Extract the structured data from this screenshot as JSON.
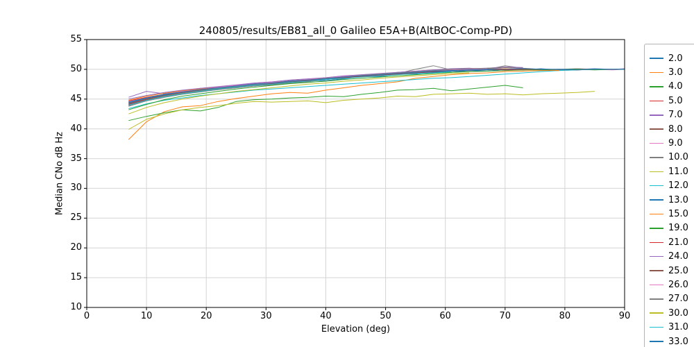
{
  "figure": {
    "background": "#ffffff",
    "grid_color": "#d4d4d4",
    "frame_color": "#000000"
  },
  "chart_data": {
    "type": "line",
    "title": "240805/results/EB81_all_0 Galileo E5A+B(AltBOC-Comp-PD)",
    "xlabel": "Elevation (deg)",
    "ylabel": "Median CNo dB Hz",
    "xlim": [
      0,
      90
    ],
    "ylim": [
      10,
      55
    ],
    "x_ticks": [
      0,
      10,
      20,
      30,
      40,
      50,
      60,
      70,
      80,
      90
    ],
    "y_ticks": [
      10,
      15,
      20,
      25,
      30,
      35,
      40,
      45,
      50,
      55
    ],
    "grid": true,
    "legend_position": "upper-right-outside",
    "x": [
      7,
      10,
      13,
      16,
      19,
      22,
      25,
      28,
      31,
      34,
      37,
      40,
      43,
      46,
      49,
      52,
      55,
      58,
      61,
      64,
      67,
      70,
      73,
      76,
      79,
      82,
      85,
      88,
      90
    ],
    "series": [
      {
        "name": "2.0",
        "color": "#1f77b4",
        "y": [
          44.2,
          45.0,
          45.6,
          46.1,
          46.3,
          46.8,
          47.0,
          47.2,
          47.6,
          47.7,
          48.1,
          48.1,
          48.4,
          48.8,
          48.8,
          49.2,
          49.2,
          49.6,
          49.5,
          49.8,
          49.7,
          50.0,
          49.9,
          50.1,
          49.9,
          50.0,
          50.1,
          50.0,
          50.0
        ]
      },
      {
        "name": "3.0",
        "color": "#ff7f0e",
        "y": [
          38.2,
          41.2,
          42.9,
          43.7,
          43.9,
          44.6,
          45.1,
          45.5,
          45.9,
          46.1,
          46.0,
          46.5,
          46.9,
          47.3,
          47.6,
          47.9,
          48.5,
          48.8,
          49.1,
          49.3,
          49.4,
          49.6,
          49.7,
          49.8,
          49.8,
          49.9,
          50.0,
          50.0,
          50.0
        ]
      },
      {
        "name": "4.0",
        "color": "#2ca02c",
        "y": [
          41.4,
          42.1,
          42.7,
          43.2,
          43.0,
          43.6,
          44.6,
          44.9,
          45.0,
          45.2,
          45.3,
          45.5,
          45.4,
          45.8,
          46.1,
          46.5,
          46.6,
          46.8,
          46.4,
          46.7,
          47.0,
          47.3,
          46.9
        ]
      },
      {
        "name": "5.0",
        "color": "#d62728",
        "y": [
          44.7,
          45.3,
          45.8,
          46.3,
          46.6,
          46.9,
          47.2,
          47.5,
          47.7,
          48.0,
          48.2,
          48.4,
          48.7,
          48.9,
          49.1,
          49.4,
          49.6,
          49.8,
          50.0,
          49.9,
          50.1,
          50.0,
          50.0,
          49.9,
          50.0,
          49.9,
          50.0,
          50.0,
          50.0
        ]
      },
      {
        "name": "7.0",
        "color": "#9467bd",
        "y": [
          45.3,
          46.3,
          45.9,
          46.4,
          46.8,
          47.0,
          47.3,
          47.6,
          47.8,
          48.1,
          48.3,
          48.5,
          48.8,
          49.0,
          49.2,
          49.5,
          49.7,
          49.9,
          50.1,
          50.2,
          50.0,
          50.3,
          50.1,
          50.0,
          50.0,
          50.1,
          50.0,
          50.0,
          50.1
        ]
      },
      {
        "name": "8.0",
        "color": "#8c564b",
        "y": [
          44.0,
          44.9,
          45.4,
          45.9,
          46.3,
          46.6,
          46.9,
          47.2,
          47.5,
          47.8,
          48.0,
          48.3,
          48.5,
          48.8,
          49.0,
          49.2,
          49.4,
          49.6,
          49.7,
          49.8,
          49.9,
          50.0,
          50.0,
          49.9,
          49.9,
          50.0,
          50.0,
          50.0
        ]
      },
      {
        "name": "9.0",
        "color": "#e377c2",
        "y": [
          44.5,
          45.2,
          45.7,
          46.2,
          46.5,
          46.8,
          47.1,
          47.3,
          47.6,
          47.9,
          48.1,
          48.3,
          48.6,
          48.8,
          49.0,
          49.2,
          49.5,
          49.7,
          49.8,
          49.9,
          50.0,
          50.1,
          50.0,
          50.0,
          49.9,
          50.0,
          50.0,
          49.9,
          50.0
        ]
      },
      {
        "name": "10.0",
        "color": "#7f7f7f",
        "y": [
          43.8,
          44.7,
          45.3,
          45.8,
          46.2,
          46.6,
          46.9,
          47.2,
          47.4,
          47.7,
          47.9,
          48.3,
          48.6,
          48.8,
          49.0,
          49.3,
          50.0,
          50.6,
          49.9,
          50.1,
          50.0,
          50.6,
          50.2,
          50.0,
          49.9,
          50.1,
          50.0,
          50.0,
          50.0
        ]
      },
      {
        "name": "11.0",
        "color": "#bcbd22",
        "y": [
          39.9,
          41.6,
          42.5,
          43.2,
          43.6,
          43.9,
          44.3,
          44.6,
          44.5,
          44.6,
          44.7,
          44.4,
          44.8,
          45.0,
          45.2,
          45.5,
          45.4,
          45.8,
          45.9,
          46.0,
          45.8,
          45.9,
          45.7,
          45.9,
          46.0,
          46.1,
          46.3
        ]
      },
      {
        "name": "12.0",
        "color": "#17becf",
        "y": [
          43.4,
          44.2,
          44.8,
          45.2,
          45.6,
          45.9,
          46.2,
          46.5,
          46.7,
          46.9,
          47.1,
          47.3,
          47.5,
          47.7,
          47.9,
          48.1,
          48.3,
          48.5,
          48.6,
          48.8,
          49.0,
          49.2,
          49.4,
          49.6,
          49.8,
          49.9,
          50.0,
          50.0,
          50.0
        ]
      },
      {
        "name": "13.0",
        "color": "#1f77b4",
        "y": [
          44.4,
          45.1,
          45.7,
          46.1,
          46.5,
          46.8,
          47.1,
          47.4,
          47.6,
          47.9,
          48.1,
          48.3,
          48.6,
          48.8,
          49.0,
          49.2,
          49.4,
          49.5,
          49.7,
          49.8,
          49.9,
          50.0,
          49.9,
          50.0,
          50.0,
          50.0
        ]
      },
      {
        "name": "15.0",
        "color": "#ff7f0e",
        "y": [
          44.8,
          45.5,
          46.0,
          46.4,
          46.7,
          47.0,
          47.2,
          47.5,
          47.8,
          48.0,
          48.3,
          48.5,
          48.7,
          48.9,
          49.1,
          49.3,
          49.5,
          49.7,
          49.8,
          49.9,
          50.0,
          50.1,
          50.0,
          49.9,
          49.8
        ]
      },
      {
        "name": "19.0",
        "color": "#2ca02c",
        "y": [
          43.2,
          44.1,
          44.9,
          45.5,
          45.9,
          46.3,
          46.7,
          47.0,
          47.3,
          47.6,
          47.8,
          48.0,
          48.3,
          48.5,
          48.7,
          48.9,
          49.1,
          49.3,
          49.5,
          49.6,
          49.7,
          49.8,
          49.9,
          49.9,
          50.0,
          50.0,
          49.9,
          50.0,
          50.0
        ]
      },
      {
        "name": "21.0",
        "color": "#d62728",
        "y": [
          44.1,
          44.9,
          45.5,
          46.0,
          46.4,
          46.7,
          47.0,
          47.3,
          47.6,
          47.8,
          48.1,
          48.3,
          48.6,
          48.8,
          49.0,
          49.2,
          49.4,
          49.6,
          49.8,
          49.9,
          50.0,
          49.9,
          50.0,
          50.0
        ]
      },
      {
        "name": "24.0",
        "color": "#9467bd",
        "y": [
          45.0,
          45.6,
          46.1,
          46.5,
          46.8,
          47.1,
          47.4,
          47.7,
          47.9,
          48.2,
          48.4,
          48.6,
          48.9,
          49.1,
          49.3,
          49.5,
          49.7,
          49.9,
          50.0,
          50.1,
          50.2,
          50.4,
          50.3
        ]
      },
      {
        "name": "25.0",
        "color": "#8c564b",
        "y": [
          44.3,
          45.0,
          45.6,
          46.1,
          46.5,
          46.8,
          47.1,
          47.4,
          47.7,
          47.9,
          48.2,
          48.4,
          48.7,
          48.9,
          49.1,
          49.3,
          49.5,
          49.7,
          49.8,
          49.9,
          50.0,
          50.0
        ]
      },
      {
        "name": "26.0",
        "color": "#e377c2",
        "y": [
          44.6,
          45.2,
          45.8,
          46.3,
          46.6,
          47.0,
          47.3,
          47.5,
          47.8,
          48.0,
          48.3,
          48.5,
          48.8,
          49.0,
          49.2,
          49.4,
          49.6,
          49.8,
          49.9,
          50.0,
          50.1
        ]
      },
      {
        "name": "27.0",
        "color": "#7f7f7f",
        "y": [
          43.9,
          44.8,
          45.5,
          46.0,
          46.4,
          46.8,
          47.1,
          47.4,
          47.7,
          48.0,
          48.2,
          48.5,
          48.7,
          49.0,
          49.2,
          49.4,
          49.6,
          49.8,
          50.0,
          50.1,
          50.2,
          50.3,
          50.2
        ]
      },
      {
        "name": "30.0",
        "color": "#bcbd22",
        "y": [
          42.5,
          43.6,
          44.4,
          45.0,
          45.5,
          45.9,
          46.3,
          46.6,
          46.9,
          47.2,
          47.5,
          47.7,
          48.0,
          48.2,
          48.5,
          48.7,
          48.9,
          49.1,
          49.3,
          49.4
        ]
      },
      {
        "name": "31.0",
        "color": "#17becf",
        "y": [
          44.0,
          44.8,
          45.4,
          45.9,
          46.3,
          46.7,
          47.0,
          47.3,
          47.5,
          47.8,
          48.0,
          48.3,
          48.5,
          48.7,
          48.9,
          49.1,
          49.3,
          49.4,
          49.6
        ]
      },
      {
        "name": "33.0",
        "color": "#1f77b4",
        "y": [
          44.5,
          45.2,
          45.8,
          46.2,
          46.6,
          46.9,
          47.2,
          47.5,
          47.7,
          48.0,
          48.2,
          48.4,
          48.7,
          48.9,
          49.1,
          49.3,
          49.5,
          49.7,
          49.8,
          49.9,
          50.0,
          50.0,
          50.1,
          50.0,
          50.0,
          49.9,
          50.0,
          50.0,
          50.0
        ]
      }
    ]
  }
}
